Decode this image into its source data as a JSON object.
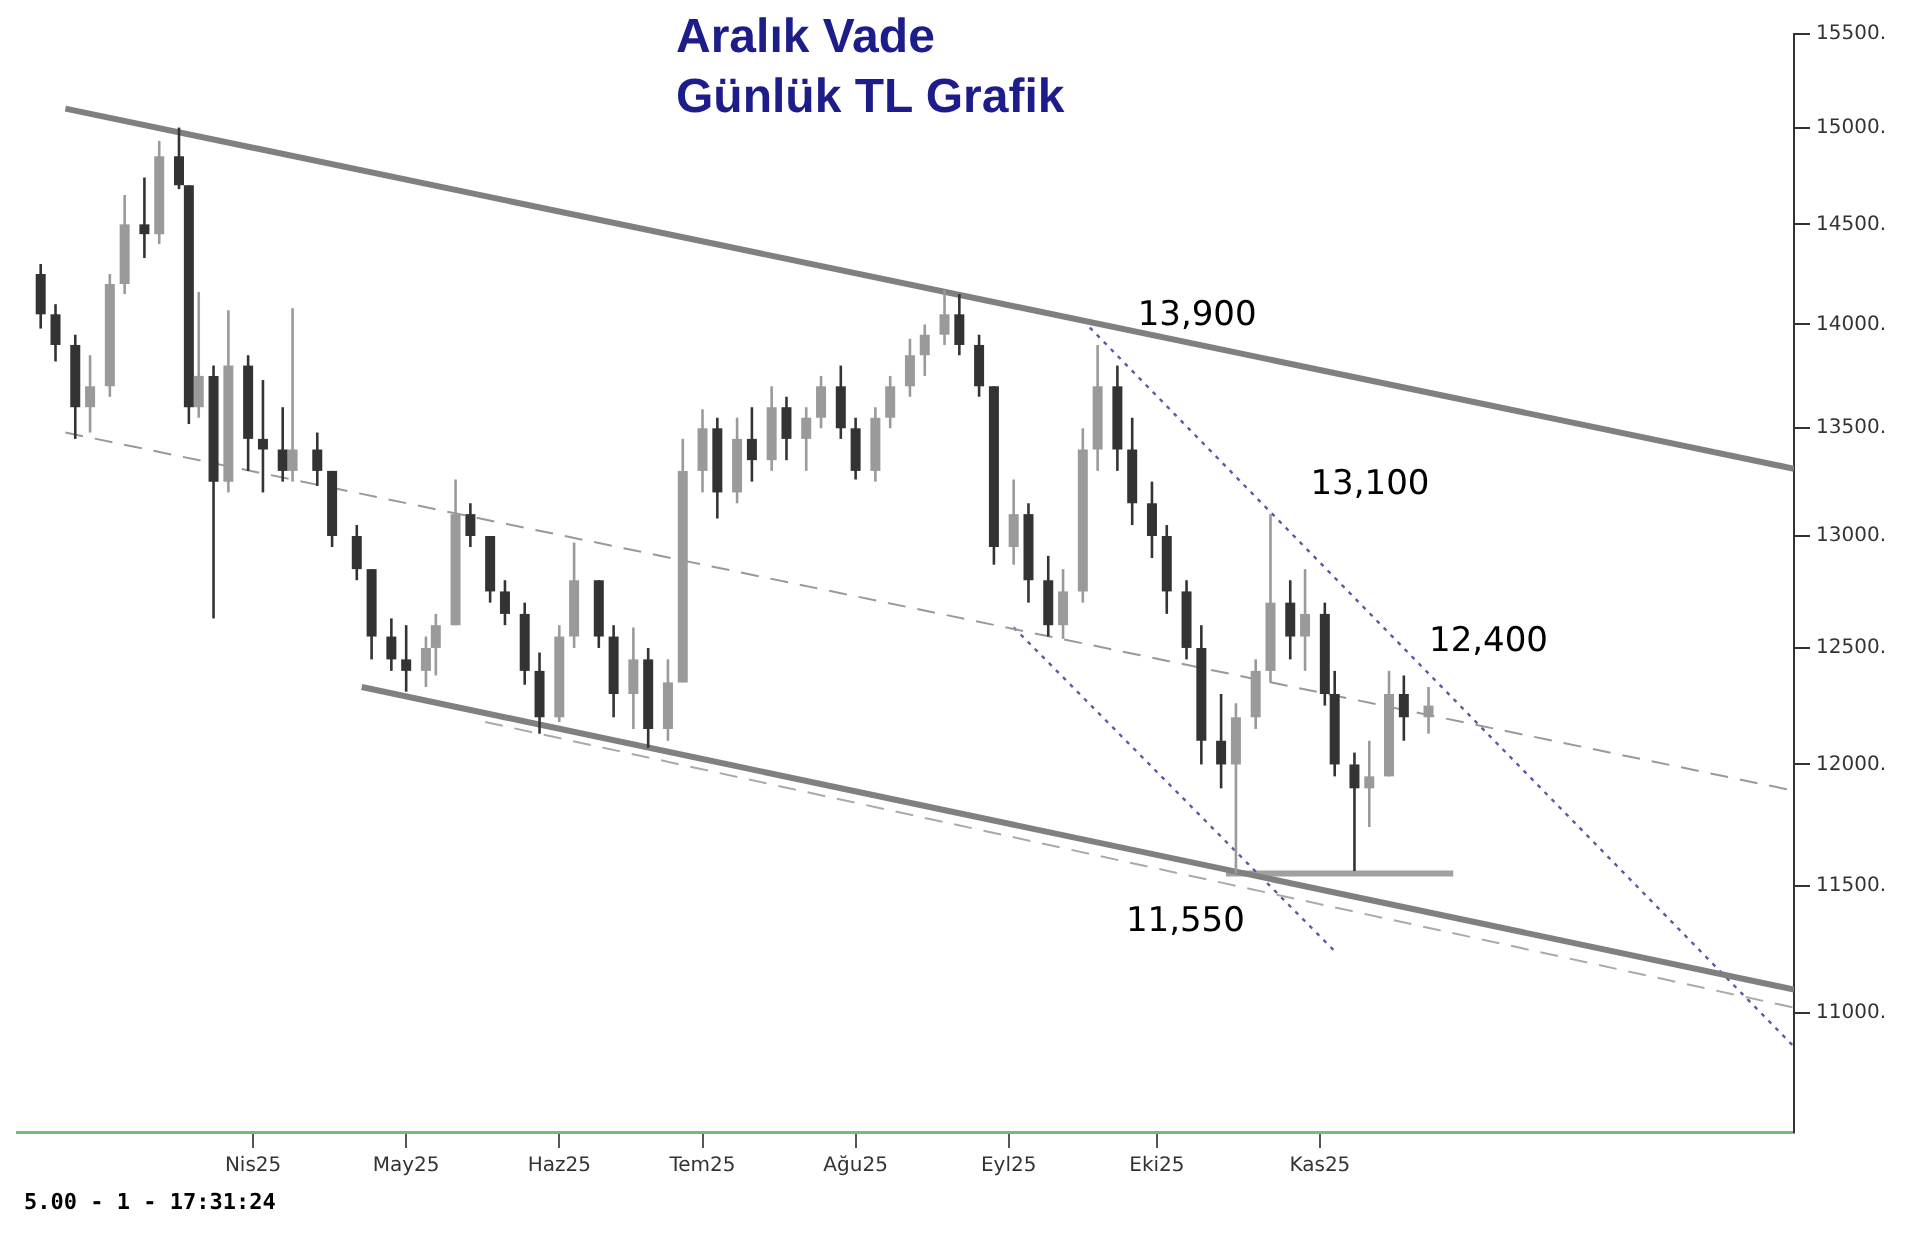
{
  "chart_data": {
    "type": "candlestick",
    "title": "Aralık Vade",
    "subtitle": "Günlük TL Grafik",
    "x": [
      "2025-02-17",
      "2025-02-20",
      "2025-02-24",
      "2025-02-27",
      "2025-03-03",
      "2025-03-06",
      "2025-03-10",
      "2025-03-13",
      "2025-03-17",
      "2025-03-19",
      "2025-03-21",
      "2025-03-24",
      "2025-03-27",
      "2025-03-31",
      "2025-04-03",
      "2025-04-07",
      "2025-04-09",
      "2025-04-14",
      "2025-04-17",
      "2025-04-22",
      "2025-04-25",
      "2025-04-29",
      "2025-05-02",
      "2025-05-06",
      "2025-05-08",
      "2025-05-12",
      "2025-05-15",
      "2025-05-19",
      "2025-05-22",
      "2025-05-26",
      "2025-05-29",
      "2025-06-02",
      "2025-06-05",
      "2025-06-10",
      "2025-06-13",
      "2025-06-17",
      "2025-06-20",
      "2025-06-24",
      "2025-06-27",
      "2025-07-01",
      "2025-07-04",
      "2025-07-08",
      "2025-07-11",
      "2025-07-15",
      "2025-07-18",
      "2025-07-22",
      "2025-07-25",
      "2025-07-29",
      "2025-08-01",
      "2025-08-05",
      "2025-08-08",
      "2025-08-12",
      "2025-08-15",
      "2025-08-19",
      "2025-08-22",
      "2025-08-26",
      "2025-08-29",
      "2025-09-02",
      "2025-09-05",
      "2025-09-09",
      "2025-09-12",
      "2025-09-16",
      "2025-09-19",
      "2025-09-23",
      "2025-09-26",
      "2025-09-30",
      "2025-10-03",
      "2025-10-07",
      "2025-10-10",
      "2025-10-14",
      "2025-10-17",
      "2025-10-21",
      "2025-10-24",
      "2025-10-28",
      "2025-10-31",
      "2025-11-04",
      "2025-11-06",
      "2025-11-10",
      "2025-11-13",
      "2025-11-17",
      "2025-11-20",
      "2025-11-25"
    ],
    "ohlc": [
      [
        14250,
        14300,
        13980,
        14050
      ],
      [
        14050,
        14100,
        13820,
        13900
      ],
      [
        13900,
        13950,
        13450,
        13600
      ],
      [
        13600,
        13850,
        13480,
        13700
      ],
      [
        13700,
        14250,
        13650,
        14200
      ],
      [
        14200,
        14650,
        14150,
        14500
      ],
      [
        14500,
        14740,
        14330,
        14450
      ],
      [
        14450,
        14930,
        14400,
        14850
      ],
      [
        14850,
        15000,
        14680,
        14700
      ],
      [
        14700,
        14700,
        13520,
        13600
      ],
      [
        13600,
        14160,
        13550,
        13750
      ],
      [
        13750,
        13800,
        12630,
        13250
      ],
      [
        13250,
        14070,
        13200,
        13800
      ],
      [
        13800,
        13850,
        13300,
        13450
      ],
      [
        13450,
        13730,
        13200,
        13400
      ],
      [
        13400,
        13600,
        13250,
        13300
      ],
      [
        13300,
        14080,
        13250,
        13400
      ],
      [
        13400,
        13480,
        13230,
        13300
      ],
      [
        13300,
        13300,
        12950,
        13000
      ],
      [
        13000,
        13050,
        12800,
        12850
      ],
      [
        12850,
        12850,
        12450,
        12550
      ],
      [
        12550,
        12630,
        12400,
        12450
      ],
      [
        12450,
        12600,
        12310,
        12400
      ],
      [
        12400,
        12550,
        12330,
        12500
      ],
      [
        12500,
        12650,
        12380,
        12600
      ],
      [
        12600,
        13260,
        12600,
        13100
      ],
      [
        13100,
        13150,
        12950,
        13000
      ],
      [
        13000,
        13000,
        12700,
        12750
      ],
      [
        12750,
        12800,
        12600,
        12650
      ],
      [
        12650,
        12700,
        12340,
        12400
      ],
      [
        12400,
        12480,
        12130,
        12200
      ],
      [
        12200,
        12600,
        12180,
        12550
      ],
      [
        12550,
        12970,
        12500,
        12800
      ],
      [
        12800,
        12800,
        12500,
        12550
      ],
      [
        12550,
        12600,
        12200,
        12300
      ],
      [
        12300,
        12590,
        12150,
        12450
      ],
      [
        12450,
        12500,
        12070,
        12150
      ],
      [
        12150,
        12450,
        12100,
        12350
      ],
      [
        12350,
        13450,
        12350,
        13300
      ],
      [
        13300,
        13590,
        13200,
        13500
      ],
      [
        13500,
        13550,
        13080,
        13200
      ],
      [
        13200,
        13550,
        13150,
        13450
      ],
      [
        13450,
        13600,
        13250,
        13350
      ],
      [
        13350,
        13700,
        13300,
        13600
      ],
      [
        13600,
        13650,
        13350,
        13450
      ],
      [
        13450,
        13600,
        13300,
        13550
      ],
      [
        13550,
        13750,
        13500,
        13700
      ],
      [
        13700,
        13800,
        13450,
        13500
      ],
      [
        13500,
        13550,
        13260,
        13300
      ],
      [
        13300,
        13600,
        13250,
        13550
      ],
      [
        13550,
        13750,
        13500,
        13700
      ],
      [
        13700,
        13930,
        13650,
        13850
      ],
      [
        13850,
        14000,
        13750,
        13950
      ],
      [
        13950,
        14170,
        13900,
        14050
      ],
      [
        14050,
        14150,
        13850,
        13900
      ],
      [
        13900,
        13950,
        13650,
        13700
      ],
      [
        13700,
        13700,
        12870,
        12950
      ],
      [
        12950,
        13260,
        12870,
        13100
      ],
      [
        13100,
        13150,
        12700,
        12800
      ],
      [
        12800,
        12910,
        12550,
        12600
      ],
      [
        12600,
        12850,
        12540,
        12750
      ],
      [
        12750,
        13500,
        12700,
        13400
      ],
      [
        13400,
        13900,
        13300,
        13700
      ],
      [
        13700,
        13800,
        13300,
        13400
      ],
      [
        13400,
        13550,
        13050,
        13150
      ],
      [
        13150,
        13250,
        12900,
        13000
      ],
      [
        13000,
        13050,
        12650,
        12750
      ],
      [
        12750,
        12800,
        12450,
        12500
      ],
      [
        12500,
        12600,
        12000,
        12100
      ],
      [
        12100,
        12300,
        11900,
        12000
      ],
      [
        12000,
        12260,
        11550,
        12200
      ],
      [
        12200,
        12450,
        12150,
        12400
      ],
      [
        12400,
        13100,
        12350,
        12700
      ],
      [
        12700,
        12800,
        12450,
        12550
      ],
      [
        12550,
        12850,
        12400,
        12650
      ],
      [
        12650,
        12700,
        12250,
        12300
      ],
      [
        12300,
        12400,
        11950,
        12000
      ],
      [
        12000,
        12050,
        11560,
        11900
      ],
      [
        11900,
        12100,
        11740,
        11950
      ],
      [
        11950,
        12400,
        11950,
        12300
      ],
      [
        12300,
        12380,
        12100,
        12200
      ],
      [
        12200,
        12330,
        12130,
        12250
      ]
    ],
    "colors": [
      "#333333",
      "#333333",
      "#333333",
      "#9a9a9a",
      "#9a9a9a",
      "#9a9a9a",
      "#333333",
      "#9a9a9a",
      "#333333",
      "#333333",
      "#9a9a9a",
      "#333333",
      "#9a9a9a",
      "#333333",
      "#333333",
      "#333333",
      "#9a9a9a",
      "#333333",
      "#333333",
      "#333333",
      "#333333",
      "#333333",
      "#333333",
      "#9a9a9a",
      "#9a9a9a",
      "#9a9a9a",
      "#333333",
      "#333333",
      "#333333",
      "#333333",
      "#333333",
      "#9a9a9a",
      "#9a9a9a",
      "#333333",
      "#333333",
      "#9a9a9a",
      "#333333",
      "#9a9a9a",
      "#9a9a9a",
      "#9a9a9a",
      "#333333",
      "#9a9a9a",
      "#333333",
      "#9a9a9a",
      "#333333",
      "#9a9a9a",
      "#9a9a9a",
      "#333333",
      "#333333",
      "#9a9a9a",
      "#9a9a9a",
      "#9a9a9a",
      "#9a9a9a",
      "#9a9a9a",
      "#333333",
      "#333333",
      "#333333",
      "#9a9a9a",
      "#333333",
      "#333333",
      "#9a9a9a",
      "#9a9a9a",
      "#9a9a9a",
      "#333333",
      "#333333",
      "#333333",
      "#333333",
      "#333333",
      "#333333",
      "#333333",
      "#9a9a9a",
      "#9a9a9a",
      "#9a9a9a",
      "#333333",
      "#9a9a9a",
      "#333333",
      "#333333",
      "#333333",
      "#9a9a9a",
      "#9a9a9a",
      "#333333",
      "#9a9a9a"
    ],
    "series": [
      {
        "type": "line",
        "color": "#808080",
        "line_style": "solid",
        "x": [
          "2025-02-22",
          "2026-02-07"
        ],
        "values": [
          15100,
          13310
        ]
      },
      {
        "type": "line",
        "color": "#808080",
        "line_style": "solid",
        "x": [
          "2025-04-23",
          "2026-02-07"
        ],
        "values": [
          12330,
          11090
        ]
      },
      {
        "type": "line",
        "color": "#999999",
        "line_style": "dashed",
        "x": [
          "2025-02-22",
          "2026-02-07"
        ],
        "values": [
          13480,
          11890
        ]
      },
      {
        "type": "line",
        "color": "#aaaaaa",
        "line_style": "dashed",
        "x": [
          "2025-05-18",
          "2026-02-07"
        ],
        "values": [
          12180,
          11020
        ]
      },
      {
        "type": "line",
        "color": "#5a5aa8",
        "line_style": "dotted",
        "x": [
          "2025-09-16",
          "2026-02-07"
        ],
        "values": [
          14020,
          10870
        ]
      },
      {
        "type": "line",
        "color": "#5a5aa8",
        "line_style": "dotted",
        "x": [
          "2025-09-02",
          "2025-11-06"
        ],
        "values": [
          12590,
          11240
        ]
      },
      {
        "type": "line",
        "color": "#a0a0a0",
        "line_style": "solid",
        "x": [
          "2025-10-15",
          "2025-11-30"
        ],
        "values": [
          11550,
          11550
        ]
      }
    ],
    "xlim": [
      "2025-02-12",
      "2026-02-07"
    ],
    "xticks": [
      {
        "value": "2025-04-01",
        "label": "Nis25"
      },
      {
        "value": "2025-05-02",
        "label": "May25"
      },
      {
        "value": "2025-06-02",
        "label": "Haz25"
      },
      {
        "value": "2025-07-01",
        "label": "Tem25"
      },
      {
        "value": "2025-08-01",
        "label": "Ağu25"
      },
      {
        "value": "2025-09-01",
        "label": "Eyl25"
      },
      {
        "value": "2025-10-01",
        "label": "Eki25"
      },
      {
        "value": "2025-11-03",
        "label": "Kas25"
      }
    ],
    "ylim": [
      10550,
      15500
    ],
    "yticks": [
      {
        "value": 11000,
        "label": "11000."
      },
      {
        "value": 11500,
        "label": "11500."
      },
      {
        "value": 12000,
        "label": "12000."
      },
      {
        "value": 12500,
        "label": "12500."
      },
      {
        "value": 13000,
        "label": "13000."
      },
      {
        "value": 13500,
        "label": "13500."
      },
      {
        "value": 14000,
        "label": "14000."
      },
      {
        "value": 14500,
        "label": "14500."
      },
      {
        "value": 15000,
        "label": "15000."
      },
      {
        "value": 15500,
        "label": "15500."
      }
    ],
    "log": true,
    "grid": false,
    "legend": false,
    "marker": "none",
    "annotations": [
      {
        "text": "13,900",
        "x": "2025-09-19",
        "y": 13900
      },
      {
        "text": "13,100",
        "x": "2025-10-24",
        "y": 13100
      },
      {
        "text": "12,400",
        "x": "2025-11-17",
        "y": 12400
      },
      {
        "text": "11,550",
        "x": "2025-10-17",
        "y": 11550
      },
      "5.00 - 1 - 17:31:24"
    ]
  }
}
